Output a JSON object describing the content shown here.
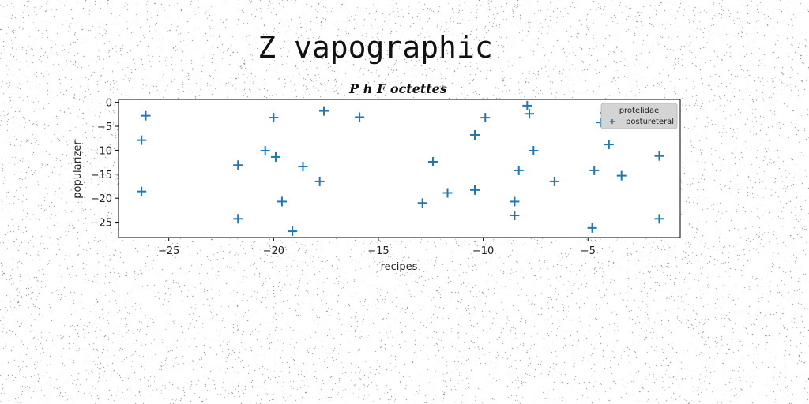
{
  "suptitle": "Z vapographic",
  "chart_data": {
    "type": "scatter",
    "title": "P h F octettes",
    "xlabel": "recipes",
    "ylabel": "popularizer",
    "xlim": [
      -27.4,
      -0.6
    ],
    "ylim": [
      -28.2,
      0.6
    ],
    "xticks": [
      -25,
      -20,
      -15,
      -10,
      -5
    ],
    "yticks": [
      0,
      -5,
      -10,
      -15,
      -20,
      -25
    ],
    "grid": false,
    "legend": {
      "title": "protelidae",
      "position": "top-right"
    },
    "series": [
      {
        "name": "postureteral",
        "marker": "+",
        "color": "#1f77b4",
        "x": [
          -26.1,
          -26.3,
          -26.3,
          -21.7,
          -21.7,
          -20.4,
          -20.0,
          -19.9,
          -19.6,
          -19.1,
          -18.6,
          -17.8,
          -17.6,
          -15.9,
          -12.9,
          -12.4,
          -11.7,
          -10.4,
          -10.4,
          -9.9,
          -8.5,
          -8.5,
          -8.3,
          -7.9,
          -7.8,
          -7.6,
          -6.6,
          -4.8,
          -4.7,
          -4.4,
          -4.2,
          -4.0,
          -3.4,
          -1.6,
          -1.6
        ],
        "y": [
          -2.8,
          -7.9,
          -18.6,
          -13.1,
          -24.3,
          -10.1,
          -3.2,
          -11.4,
          -20.7,
          -26.9,
          -13.4,
          -16.5,
          -1.8,
          -3.1,
          -21.0,
          -12.4,
          -18.9,
          -6.8,
          -18.3,
          -3.2,
          -20.7,
          -23.6,
          -14.2,
          -0.7,
          -2.4,
          -10.1,
          -16.5,
          -26.2,
          -14.2,
          -4.2,
          -2.2,
          -8.8,
          -15.3,
          -11.2,
          -24.3
        ]
      }
    ]
  }
}
